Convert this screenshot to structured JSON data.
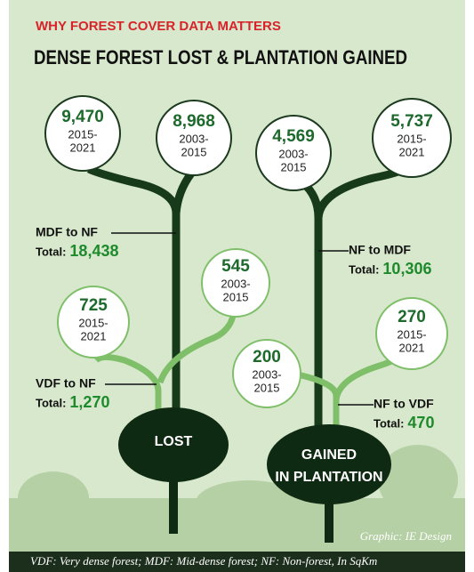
{
  "header": {
    "kicker": "WHY FOREST COVER DATA MATTERS",
    "title": "DENSE FOREST LOST & PLANTATION GAINED"
  },
  "panels": [
    {
      "label": [
        "LOST"
      ],
      "flows": [
        {
          "label": "MDF to NF",
          "total_label": "Total:",
          "total": "18,438",
          "periods": [
            {
              "value": "9,470",
              "years": [
                "2015-",
                "2021"
              ]
            },
            {
              "value": "8,968",
              "years": [
                "2003-",
                "2015"
              ]
            }
          ]
        },
        {
          "label": "VDF to NF",
          "total_label": "Total:",
          "total": "1,270",
          "periods": [
            {
              "value": "725",
              "years": [
                "2015-",
                "2021"
              ]
            },
            {
              "value": "545",
              "years": [
                "2003-",
                "2015"
              ]
            }
          ]
        }
      ]
    },
    {
      "label": [
        "GAINED",
        "IN PLANTATION"
      ],
      "flows": [
        {
          "label": "NF to MDF",
          "total_label": "Total:",
          "total": "10,306",
          "periods": [
            {
              "value": "4,569",
              "years": [
                "2003-",
                "2015"
              ]
            },
            {
              "value": "5,737",
              "years": [
                "2015-",
                "2021"
              ]
            }
          ]
        },
        {
          "label": "NF to VDF",
          "total_label": "Total:",
          "total": "470",
          "periods": [
            {
              "value": "200",
              "years": [
                "2003-",
                "2015"
              ]
            },
            {
              "value": "270",
              "years": [
                "2015-",
                "2021"
              ]
            }
          ]
        }
      ]
    }
  ],
  "credit": "Graphic: IE Design",
  "footnote": "VDF: Very dense forest; MDF: Mid-dense forest; NF: Non-forest, In SqKm"
}
